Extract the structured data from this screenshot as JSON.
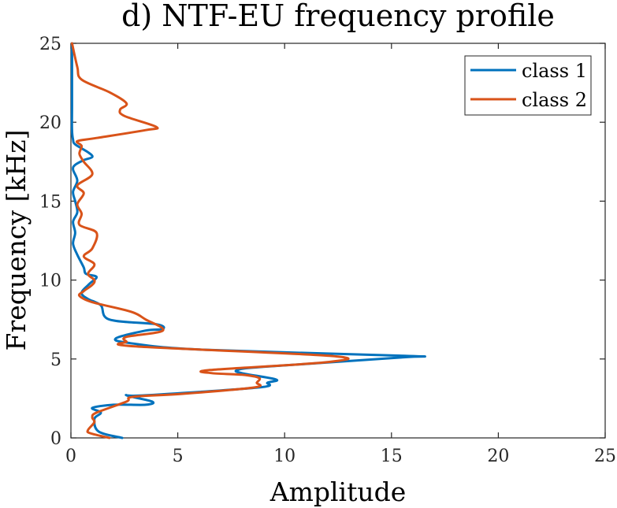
{
  "chart_data": {
    "type": "line",
    "title": "d) NTF-EU frequency profile",
    "xlabel": "Amplitude",
    "ylabel": "Frequency [kHz]",
    "xlim": [
      0,
      25
    ],
    "ylim": [
      0,
      25
    ],
    "xticks": [
      0,
      5,
      10,
      15,
      20,
      25
    ],
    "yticks": [
      0,
      5,
      10,
      15,
      20,
      25
    ],
    "grid": false,
    "legend_position": "top-right",
    "series": [
      {
        "name": "class 1",
        "color": "#0072BD",
        "x": [
          2.4,
          1.3,
          1.1,
          1.4,
          1.0,
          2.0,
          3.5,
          3.8,
          2.6,
          3.5,
          8.8,
          9.2,
          9.6,
          8.0,
          7.8,
          9.0,
          15.5,
          15.6,
          6.0,
          2.8,
          2.1,
          3.5,
          4.3,
          4.0,
          1.8,
          1.4,
          0.8,
          0.5,
          0.9,
          1.2,
          0.7,
          0.6,
          0.3,
          0.1,
          0.2,
          0.1,
          0.3,
          0.2,
          0.1,
          0.3,
          0.1,
          0.2,
          0.6,
          1.0,
          0.8,
          0.2,
          0.1,
          0.05,
          0.05,
          0.05,
          0.05
        ],
        "y": [
          0.0,
          0.4,
          1.2,
          1.6,
          1.9,
          2.1,
          2.1,
          2.3,
          2.7,
          2.7,
          3.2,
          3.5,
          3.7,
          4.1,
          4.3,
          4.5,
          5.1,
          5.2,
          5.6,
          6.0,
          6.3,
          6.8,
          6.9,
          7.2,
          7.5,
          8.4,
          8.8,
          9.2,
          9.8,
          10.2,
          10.4,
          10.8,
          11.6,
          12.3,
          13.0,
          13.7,
          14.3,
          15.0,
          15.6,
          16.3,
          17.0,
          17.3,
          17.6,
          17.8,
          18.1,
          18.6,
          18.9,
          19.5,
          21.0,
          23.0,
          25.0
        ]
      },
      {
        "name": "class 2",
        "color": "#D95319",
        "x": [
          1.8,
          0.9,
          0.8,
          1.1,
          1.0,
          1.2,
          2.6,
          2.9,
          5.3,
          8.6,
          8.7,
          8.8,
          8.0,
          6.6,
          6.5,
          12.0,
          12.1,
          3.0,
          2.6,
          2.6,
          4.3,
          3.5,
          2.8,
          1.0,
          0.4,
          0.6,
          1.0,
          1.1,
          0.8,
          1.1,
          0.6,
          1.0,
          1.2,
          0.4,
          0.5,
          0.3,
          0.6,
          0.3,
          1.0,
          0.6,
          0.4,
          0.5,
          0.3,
          1.2,
          3.5,
          4.0,
          2.5,
          2.3,
          2.6,
          1.8,
          0.5,
          0.3,
          0.05
        ],
        "y": [
          0.0,
          0.3,
          0.5,
          1.0,
          1.3,
          1.6,
          2.3,
          2.6,
          2.8,
          3.2,
          3.5,
          3.8,
          4.0,
          4.1,
          4.3,
          4.8,
          5.2,
          5.8,
          6.1,
          6.4,
          6.8,
          7.5,
          8.0,
          8.6,
          9.0,
          9.3,
          9.7,
          10.0,
          10.4,
          11.0,
          11.5,
          12.0,
          13.0,
          13.5,
          14.2,
          14.8,
          15.5,
          16.0,
          16.7,
          17.5,
          18.0,
          18.5,
          18.8,
          19.0,
          19.5,
          19.7,
          20.4,
          20.8,
          21.2,
          21.9,
          22.7,
          23.5,
          25.0
        ]
      }
    ]
  }
}
